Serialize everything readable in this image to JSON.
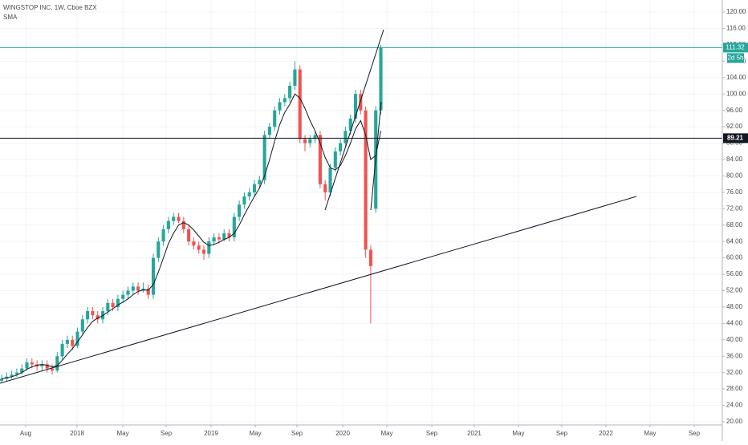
{
  "chart_data": {
    "type": "candlestick",
    "title": "WINGSTOP INC, 1W, Cboe BZX",
    "indicator": "SMA",
    "up_color": "#26a69a",
    "down_color": "#ef5350",
    "sma_color": "#131722",
    "open": [
      30,
      30.5,
      31,
      31.5,
      32,
      33,
      34.5,
      34,
      33.5,
      34,
      33,
      32.5,
      36,
      39,
      40,
      38.5,
      42,
      45,
      47,
      46,
      45,
      47,
      49,
      48,
      50,
      51,
      52,
      53,
      52,
      52.5,
      51,
      60,
      64,
      67,
      69,
      70,
      69,
      67,
      64,
      63,
      62,
      61,
      64,
      65,
      64.5,
      66,
      65,
      70,
      73,
      75,
      76,
      78,
      79,
      90,
      92,
      96,
      98,
      99,
      102,
      106,
      89,
      88,
      89,
      90,
      78,
      76,
      82,
      86,
      88,
      91,
      94,
      100,
      96,
      62,
      72,
      96
    ],
    "high": [
      31.5,
      32,
      32.5,
      33,
      34,
      35.5,
      35.5,
      35,
      35,
      35,
      34,
      37,
      40,
      41,
      41,
      43,
      46,
      48,
      48,
      47,
      48,
      50,
      50,
      51,
      52,
      53,
      54,
      54,
      54,
      53.5,
      61,
      65,
      68,
      70,
      71,
      71,
      70,
      68,
      65,
      64,
      63,
      65,
      66,
      66,
      67,
      67,
      71,
      74,
      76,
      77,
      79,
      80,
      91,
      93,
      97,
      99,
      100,
      103,
      108,
      107,
      90,
      90,
      91,
      91,
      79,
      83,
      87,
      89,
      92,
      95,
      101,
      101,
      97,
      63,
      97,
      112
    ],
    "low": [
      29.5,
      30,
      30.5,
      31,
      31.5,
      32.5,
      33,
      32.5,
      32.5,
      32,
      31.5,
      32,
      35,
      38,
      37.5,
      38,
      41.5,
      44,
      45,
      44,
      44,
      46,
      47,
      47,
      49,
      50,
      51,
      51,
      51.5,
      50,
      50,
      59,
      63,
      66,
      68,
      68.5,
      66,
      63,
      62,
      61,
      59.5,
      60,
      63,
      63.5,
      64,
      64,
      64,
      69,
      72,
      74,
      75,
      77,
      78,
      89,
      91,
      95,
      97,
      98,
      101,
      88,
      86,
      87,
      88,
      77,
      74,
      75,
      81,
      85,
      87,
      90,
      93,
      95,
      60,
      44,
      71,
      95
    ],
    "close": [
      30.5,
      31,
      31.5,
      32,
      33,
      34.5,
      34,
      33.5,
      34,
      33,
      32.5,
      36,
      39,
      40,
      38.5,
      42,
      45,
      47,
      46,
      45,
      47,
      49,
      48,
      50,
      51,
      52,
      53,
      52,
      52.5,
      51,
      60,
      64,
      67,
      69,
      70,
      69,
      67,
      64,
      63,
      62,
      61,
      64,
      65,
      64.5,
      66,
      65,
      70,
      73,
      75,
      76,
      78,
      79,
      90,
      92,
      96,
      98,
      99,
      102,
      106,
      89,
      88,
      89,
      90,
      78,
      76,
      82,
      86,
      88,
      91,
      94,
      100,
      96,
      62,
      58,
      96,
      111.32
    ],
    "sma": [
      30.5,
      30.7,
      31,
      31.4,
      32,
      32.8,
      33.4,
      33.8,
      34,
      33.8,
      33.4,
      33.7,
      35,
      36.5,
      37.8,
      39.5,
      41.2,
      43,
      44.5,
      45.3,
      45.9,
      46.8,
      47.6,
      48.5,
      49.2,
      50,
      51,
      51.8,
      52.2,
      52.1,
      53.5,
      56.5,
      60,
      63.5,
      66,
      68,
      68.6,
      68,
      66.8,
      65.3,
      63.8,
      63,
      63.3,
      63.8,
      64.5,
      65,
      66,
      68,
      70.5,
      72.8,
      75,
      77,
      80,
      84,
      88.5,
      92.5,
      95.5,
      97.5,
      100,
      99,
      96.5,
      93.5,
      91,
      88,
      84.5,
      82,
      81.5,
      82.5,
      85,
      88,
      91.5,
      93.5,
      90,
      84,
      85,
      91
    ],
    "hline": 89.21,
    "countdown": "2d 5h",
    "xlim": [
      -0.32,
      142.54
    ],
    "xticks": [
      {
        "value": 4.76,
        "label": "Aug"
      },
      {
        "value": 14.92,
        "label": "2018"
      },
      {
        "value": 23.97,
        "label": "May"
      },
      {
        "value": 32.54,
        "label": "Sep"
      },
      {
        "value": 41.43,
        "label": "2019"
      },
      {
        "value": 50.16,
        "label": "May"
      },
      {
        "value": 58.41,
        "label": "Sep"
      },
      {
        "value": 67.46,
        "label": "2020"
      },
      {
        "value": 76.19,
        "label": "May"
      },
      {
        "value": 85.08,
        "label": "Sep"
      },
      {
        "value": 93.49,
        "label": "2021"
      },
      {
        "value": 102.22,
        "label": "May"
      },
      {
        "value": 110.79,
        "label": "Sep"
      },
      {
        "value": 119.52,
        "label": "2022"
      },
      {
        "value": 128.25,
        "label": "May"
      },
      {
        "value": 136.98,
        "label": "Sep"
      }
    ],
    "ylim": [
      19.22,
      122.94
    ],
    "yticks": [
      {
        "value": 20,
        "label": "20.00"
      },
      {
        "value": 24,
        "label": "24.00"
      },
      {
        "value": 28,
        "label": "28.00"
      },
      {
        "value": 32,
        "label": "32.00"
      },
      {
        "value": 36,
        "label": "36.00"
      },
      {
        "value": 40,
        "label": "40.00"
      },
      {
        "value": 44,
        "label": "44.00"
      },
      {
        "value": 48,
        "label": "48.00"
      },
      {
        "value": 52,
        "label": "52.00"
      },
      {
        "value": 56,
        "label": "56.00"
      },
      {
        "value": 60,
        "label": "60.00"
      },
      {
        "value": 64,
        "label": "64.00"
      },
      {
        "value": 68,
        "label": "68.00"
      },
      {
        "value": 72,
        "label": "72.00"
      },
      {
        "value": 76,
        "label": "76.00"
      },
      {
        "value": 80,
        "label": "80.00"
      },
      {
        "value": 84,
        "label": "84.00"
      },
      {
        "value": 88,
        "label": "88.00"
      },
      {
        "value": 92,
        "label": "92.00"
      },
      {
        "value": 96,
        "label": "96.00"
      },
      {
        "value": 100,
        "label": "100.00"
      },
      {
        "value": 104,
        "label": "104.00"
      },
      {
        "value": 108,
        "label": "108.00"
      },
      {
        "value": 112,
        "label": "112.00"
      },
      {
        "value": 116,
        "label": "116.00"
      },
      {
        "value": 120,
        "label": "120.00"
      }
    ],
    "grid": true
  }
}
